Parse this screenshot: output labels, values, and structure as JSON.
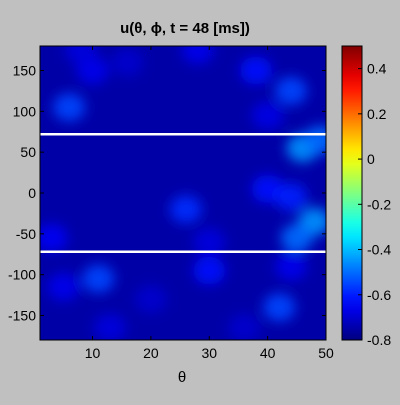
{
  "chart_data": {
    "type": "heatmap",
    "title": "u(θ, ϕ, t = 48 [ms])",
    "xlabel": "θ",
    "ylabel": "",
    "xlim": [
      1,
      50
    ],
    "ylim": [
      -180,
      180
    ],
    "xticks": [
      10,
      20,
      30,
      40,
      50
    ],
    "yticks": [
      150,
      100,
      50,
      0,
      -50,
      -100,
      -150
    ],
    "colorbar": {
      "ticks": [
        0.4,
        0.2,
        0,
        -0.2,
        -0.4,
        -0.6,
        -0.8
      ],
      "range": [
        -0.8,
        0.5
      ],
      "colormap": "jet"
    },
    "reference_lines_y": [
      72,
      -72
    ],
    "background_value": -0.75,
    "blobs": [
      {
        "x": 6,
        "y": 105,
        "value": -0.55
      },
      {
        "x": 10,
        "y": 150,
        "value": -0.66
      },
      {
        "x": 8,
        "y": 175,
        "value": -0.68
      },
      {
        "x": 16,
        "y": 160,
        "value": -0.7
      },
      {
        "x": 28,
        "y": 175,
        "value": -0.66
      },
      {
        "x": 38,
        "y": 150,
        "value": -0.62
      },
      {
        "x": 44,
        "y": 125,
        "value": -0.55
      },
      {
        "x": 40,
        "y": 95,
        "value": -0.67
      },
      {
        "x": 46,
        "y": 55,
        "value": -0.45
      },
      {
        "x": 49,
        "y": 65,
        "value": -0.5
      },
      {
        "x": 40,
        "y": 5,
        "value": -0.62
      },
      {
        "x": 44,
        "y": -5,
        "value": -0.6
      },
      {
        "x": 26,
        "y": -20,
        "value": -0.58
      },
      {
        "x": 48,
        "y": -35,
        "value": -0.45
      },
      {
        "x": 45,
        "y": -55,
        "value": -0.5
      },
      {
        "x": 3,
        "y": -55,
        "value": -0.65
      },
      {
        "x": 30,
        "y": -60,
        "value": -0.68
      },
      {
        "x": 11,
        "y": -105,
        "value": -0.55
      },
      {
        "x": 5,
        "y": -115,
        "value": -0.66
      },
      {
        "x": 30,
        "y": -95,
        "value": -0.62
      },
      {
        "x": 44,
        "y": -90,
        "value": -0.66
      },
      {
        "x": 42,
        "y": -140,
        "value": -0.55
      },
      {
        "x": 13,
        "y": -165,
        "value": -0.68
      },
      {
        "x": 20,
        "y": -130,
        "value": -0.7
      },
      {
        "x": 36,
        "y": -165,
        "value": -0.7
      }
    ]
  }
}
